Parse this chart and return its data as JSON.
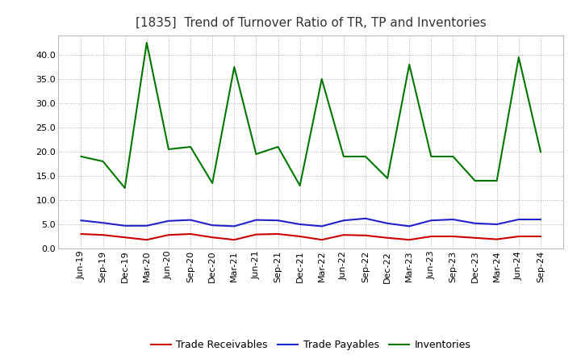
{
  "title": "[1835]  Trend of Turnover Ratio of TR, TP and Inventories",
  "labels": [
    "Jun-19",
    "Sep-19",
    "Dec-19",
    "Mar-20",
    "Jun-20",
    "Sep-20",
    "Dec-20",
    "Mar-21",
    "Jun-21",
    "Sep-21",
    "Dec-21",
    "Mar-22",
    "Jun-22",
    "Sep-22",
    "Dec-22",
    "Mar-23",
    "Jun-23",
    "Sep-23",
    "Dec-23",
    "Mar-24",
    "Jun-24",
    "Sep-24"
  ],
  "trade_receivables": [
    3.0,
    2.8,
    2.3,
    1.8,
    2.8,
    3.0,
    2.3,
    1.8,
    2.9,
    3.0,
    2.5,
    1.8,
    2.8,
    2.7,
    2.2,
    1.8,
    2.5,
    2.5,
    2.2,
    1.9,
    2.5,
    2.5
  ],
  "trade_payables": [
    5.8,
    5.3,
    4.7,
    4.7,
    5.7,
    5.9,
    4.8,
    4.6,
    5.9,
    5.8,
    5.0,
    4.6,
    5.8,
    6.2,
    5.2,
    4.6,
    5.8,
    6.0,
    5.2,
    5.0,
    6.0,
    6.0
  ],
  "inventories": [
    19.0,
    18.0,
    12.5,
    42.5,
    20.5,
    21.0,
    13.5,
    37.5,
    19.5,
    21.0,
    13.0,
    35.0,
    19.0,
    19.0,
    14.5,
    38.0,
    19.0,
    19.0,
    14.0,
    14.0,
    39.5,
    20.0
  ],
  "tr_color": "#cc0000",
  "tp_color": "#2222cc",
  "inv_color": "#007700",
  "tr_label": "Trade Receivables",
  "tp_label": "Trade Payables",
  "inv_label": "Inventories",
  "ylim": [
    0.0,
    44.0
  ],
  "yticks": [
    0.0,
    5.0,
    10.0,
    15.0,
    20.0,
    25.0,
    30.0,
    35.0,
    40.0
  ],
  "background_color": "#ffffff",
  "grid_color": "#999999",
  "title_fontsize": 11,
  "legend_fontsize": 9,
  "tick_fontsize": 8,
  "linewidth": 1.5
}
